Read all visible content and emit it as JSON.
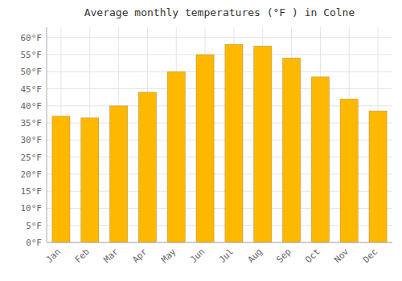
{
  "chart_data": {
    "type": "bar",
    "title": "Average monthly temperatures (°F ) in Colne",
    "categories": [
      "Jan",
      "Feb",
      "Mar",
      "Apr",
      "May",
      "Jun",
      "Jul",
      "Aug",
      "Sep",
      "Oct",
      "Nov",
      "Dec"
    ],
    "values": [
      37,
      36.5,
      40,
      44,
      50,
      55,
      58,
      57.5,
      54,
      48.5,
      42,
      38.5
    ],
    "color": "#FFB800",
    "ylim": [
      0,
      63
    ],
    "yticks": [
      {
        "value": 0,
        "label": "0°F"
      },
      {
        "value": 5,
        "label": "5°F"
      },
      {
        "value": 10,
        "label": "10°F"
      },
      {
        "value": 15,
        "label": "15°F"
      },
      {
        "value": 20,
        "label": "20°F"
      },
      {
        "value": 25,
        "label": "25°F"
      },
      {
        "value": 30,
        "label": "30°F"
      },
      {
        "value": 35,
        "label": "35°F"
      },
      {
        "value": 40,
        "label": "40°F"
      },
      {
        "value": 45,
        "label": "45°F"
      },
      {
        "value": 50,
        "label": "50°F"
      },
      {
        "value": 55,
        "label": "55°F"
      },
      {
        "value": 60,
        "label": "60°F"
      }
    ],
    "grid": true
  }
}
